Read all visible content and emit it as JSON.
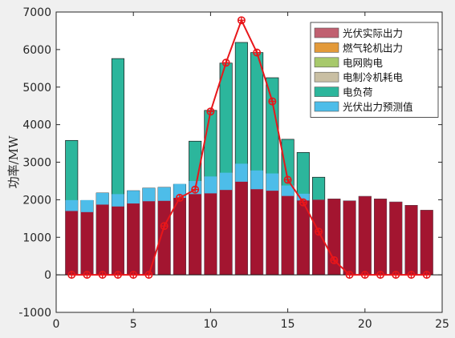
{
  "chart_data": {
    "type": "bar",
    "xlabel": "",
    "ylabel": "功率/MW",
    "xlim": [
      0,
      25
    ],
    "ylim": [
      -1000,
      7000
    ],
    "x_ticks": [
      "0",
      "5",
      "10",
      "15",
      "20",
      "25"
    ],
    "y_ticks": [
      "-1000",
      "0",
      "1000",
      "2000",
      "3000",
      "4000",
      "5000",
      "6000",
      "7000"
    ],
    "legend_position": "top-right",
    "x": [
      1,
      2,
      3,
      4,
      5,
      6,
      7,
      8,
      9,
      10,
      11,
      12,
      13,
      14,
      15,
      16,
      17,
      18,
      19,
      20,
      21,
      22,
      23,
      24
    ],
    "series": [
      {
        "name": "光伏实际出力",
        "kind": "line",
        "color": "#c0392b",
        "values": [
          0,
          0,
          0,
          0,
          0,
          0,
          1300,
          2050,
          2270,
          4350,
          5650,
          6780,
          5920,
          4620,
          2530,
          1930,
          1150,
          390,
          0,
          0,
          0,
          0,
          0,
          0
        ]
      },
      {
        "name": "燃气轮机出力",
        "kind": "bar",
        "color": "#a31530",
        "values": [
          1700,
          1670,
          1870,
          1820,
          1900,
          1960,
          1970,
          2050,
          2150,
          2170,
          2260,
          2480,
          2280,
          2240,
          2100,
          1980,
          2000,
          2020,
          1970,
          2090,
          2020,
          1940,
          1850,
          1720
        ]
      },
      {
        "name": "电网购电",
        "kind": "bar",
        "color": "#a7c96b",
        "values": [
          0,
          0,
          0,
          0,
          0,
          0,
          0,
          0,
          0,
          0,
          0,
          0,
          0,
          0,
          0,
          0,
          0,
          0,
          0,
          0,
          0,
          0,
          0,
          0
        ]
      },
      {
        "name": "电制冷机耗电",
        "kind": "bar",
        "color": "#c9bfa3",
        "values": [
          0,
          0,
          0,
          0,
          0,
          0,
          0,
          0,
          0,
          0,
          0,
          0,
          0,
          0,
          0,
          0,
          0,
          0,
          0,
          0,
          0,
          0,
          0,
          0
        ]
      },
      {
        "name": "电负荷",
        "kind": "bar",
        "color": "#2cb69c",
        "values": [
          3580,
          1980,
          2180,
          5760,
          2240,
          2310,
          2330,
          2410,
          3560,
          4380,
          5640,
          6190,
          5920,
          5250,
          3610,
          3260,
          2600,
          2020,
          1970,
          2090,
          2020,
          1940,
          1850,
          1720
        ]
      },
      {
        "name": "光伏出力预测值",
        "kind": "bar",
        "color": "#4dbde9",
        "values": [
          1990,
          1990,
          2180,
          2150,
          2240,
          2310,
          2330,
          2420,
          2500,
          2620,
          2720,
          2960,
          2780,
          2700,
          2380,
          2160,
          2000,
          2020,
          1970,
          2090,
          2020,
          1940,
          1850,
          1720
        ]
      }
    ],
    "legend_entries": [
      {
        "label": "光伏实际出力",
        "color": "#c06070"
      },
      {
        "label": "燃气轮机出力",
        "color": "#e39a3a"
      },
      {
        "label": "电网购电",
        "color": "#a7c96b"
      },
      {
        "label": "电制冷机耗电",
        "color": "#c9bfa3"
      },
      {
        "label": "电负荷",
        "color": "#2cb69c"
      },
      {
        "label": "光伏出力预测值",
        "color": "#4dbde9"
      }
    ]
  }
}
